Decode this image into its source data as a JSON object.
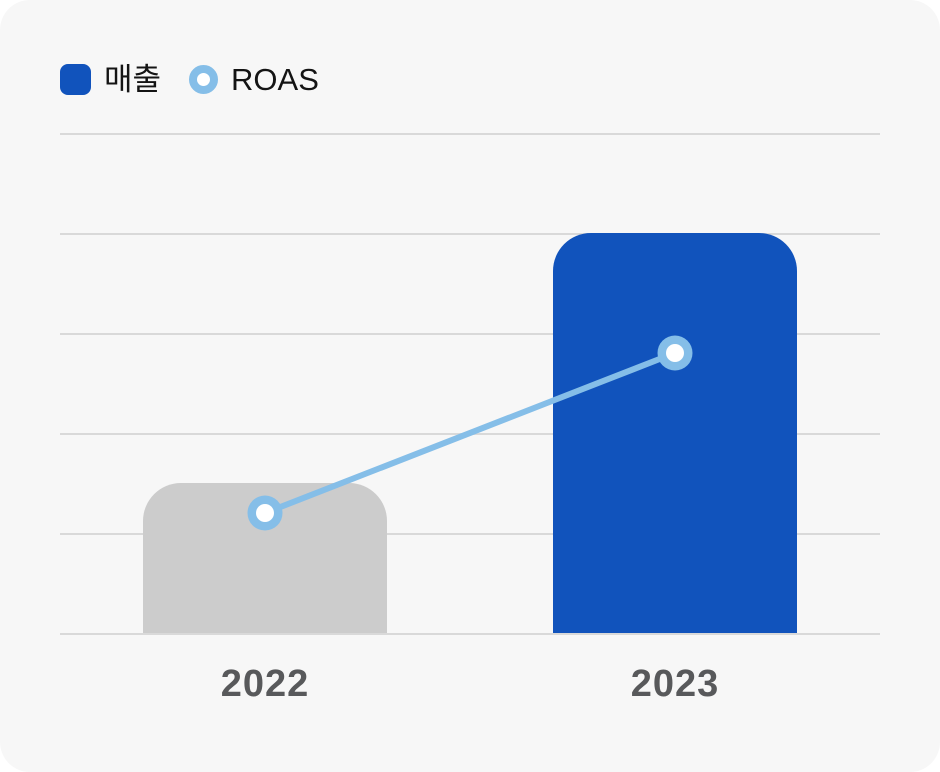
{
  "legend": {
    "items": [
      {
        "label": "매출",
        "swatch": "rounded-square",
        "color": "#1153BC"
      },
      {
        "label": "ROAS",
        "swatch": "ring",
        "color": "#85BEE8"
      }
    ]
  },
  "colors": {
    "card_background": "#F7F7F7",
    "outer_background": "#FFFFFF",
    "gridline": "#D9D9D9",
    "bar_2022": "#CCCCCC",
    "bar_2023": "#1153BC",
    "roas_line": "#85BEE8",
    "marker_center": "#FFFFFF",
    "x_tick_label": "#58595B",
    "legend_text": "#141414"
  },
  "chart_data": {
    "type": "bar",
    "categories": [
      "2022",
      "2023"
    ],
    "series": [
      {
        "name": "매출",
        "type": "bar",
        "values": [
          1.5,
          4.0
        ],
        "bar_colors": [
          "#CCCCCC",
          "#1153BC"
        ]
      },
      {
        "name": "ROAS",
        "type": "line",
        "values": [
          1.2,
          2.8
        ],
        "line_color": "#85BEE8",
        "marker": "ring"
      }
    ],
    "title": "",
    "xlabel": "",
    "ylabel": "",
    "ylim": [
      0,
      5
    ],
    "grid": "horizontal",
    "gridline_count": 6,
    "legend_position": "top-left"
  }
}
